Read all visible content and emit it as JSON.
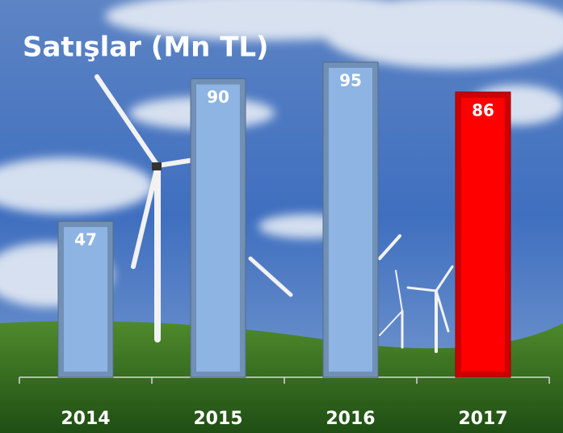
{
  "chart_data": {
    "type": "bar",
    "title": "Satışlar (Mn TL)",
    "categories": [
      "2014",
      "2015",
      "2016",
      "2017"
    ],
    "values": [
      47,
      90,
      95,
      86
    ],
    "colors": [
      "#8db4e2",
      "#8db4e2",
      "#8db4e2",
      "#ff0000"
    ]
  }
}
